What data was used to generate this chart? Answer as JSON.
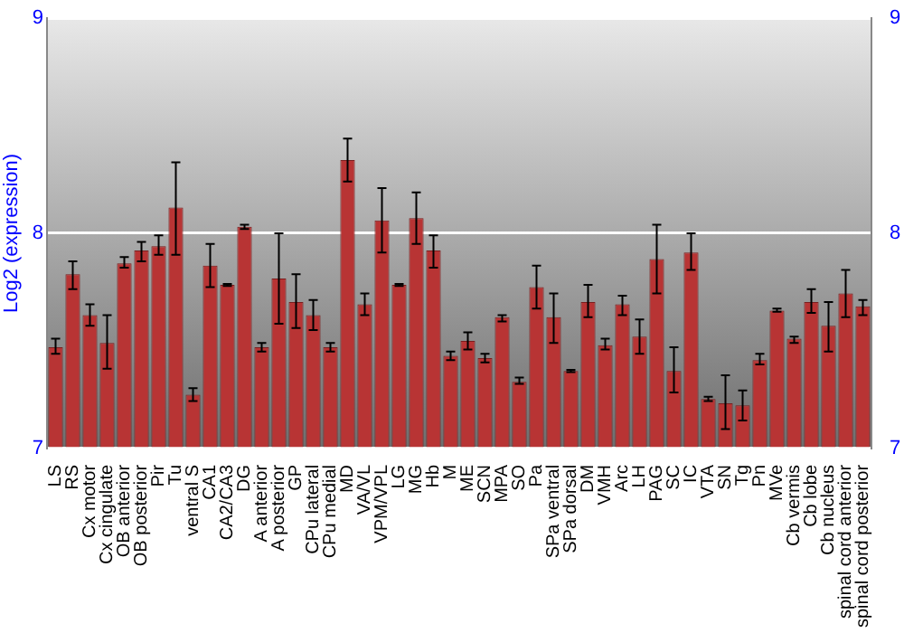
{
  "chart_data": {
    "type": "bar",
    "ylabel": "Log2 (expression)",
    "categories": [
      "LS",
      "RS",
      "Cx motor",
      "Cx cingulate",
      "OB anterior",
      "OB posterior",
      "Pir",
      "Tu",
      "ventral S",
      "CA1",
      "CA2/CA3",
      "DG",
      "A anterior",
      "A posterior",
      "GP",
      "CPu lateral",
      "CPu medial",
      "MD",
      "VA/VL",
      "VPM/VPL",
      "LG",
      "MG",
      "Hb",
      "M",
      "ME",
      "SCN",
      "MPA",
      "SO",
      "Pa",
      "SPa ventral",
      "SPa dorsal",
      "DM",
      "VMH",
      "Arc",
      "LH",
      "PAG",
      "SC",
      "IC",
      "VTA",
      "SN",
      "Tg",
      "Pn",
      "MVe",
      "Cb vermis",
      "Cb lobe",
      "Cb nucleus",
      "spinal cord anterior",
      "spinal cord posterior"
    ],
    "values": [
      7.47,
      7.81,
      7.62,
      7.49,
      7.86,
      7.92,
      7.94,
      8.12,
      7.25,
      7.85,
      7.76,
      8.03,
      7.47,
      7.79,
      7.68,
      7.62,
      7.47,
      8.34,
      7.67,
      8.06,
      7.76,
      8.07,
      7.92,
      7.43,
      7.5,
      7.42,
      7.61,
      7.31,
      7.75,
      7.61,
      7.36,
      7.68,
      7.48,
      7.67,
      7.52,
      7.88,
      7.36,
      7.91,
      7.23,
      7.21,
      7.2,
      7.41,
      7.64,
      7.51,
      7.68,
      7.57,
      7.72,
      7.66
    ],
    "errors": [
      [
        7.44,
        7.51
      ],
      [
        7.74,
        7.87
      ],
      [
        7.57,
        7.67
      ],
      [
        7.37,
        7.62
      ],
      [
        7.84,
        7.89
      ],
      [
        7.87,
        7.96
      ],
      [
        7.9,
        7.99
      ],
      [
        7.9,
        8.33
      ],
      [
        7.22,
        7.28
      ],
      [
        7.75,
        7.95
      ],
      [
        7.755,
        7.765
      ],
      [
        8.02,
        8.04
      ],
      [
        7.45,
        7.49
      ],
      [
        7.58,
        8.0
      ],
      [
        7.56,
        7.81
      ],
      [
        7.55,
        7.69
      ],
      [
        7.45,
        7.49
      ],
      [
        8.24,
        8.44
      ],
      [
        7.62,
        7.72
      ],
      [
        7.91,
        8.21
      ],
      [
        7.755,
        7.765
      ],
      [
        7.95,
        8.19
      ],
      [
        7.84,
        7.99
      ],
      [
        7.41,
        7.45
      ],
      [
        7.46,
        7.54
      ],
      [
        7.4,
        7.44
      ],
      [
        7.59,
        7.62
      ],
      [
        7.3,
        7.33
      ],
      [
        7.65,
        7.85
      ],
      [
        7.49,
        7.72
      ],
      [
        7.355,
        7.365
      ],
      [
        7.61,
        7.76
      ],
      [
        7.46,
        7.51
      ],
      [
        7.62,
        7.71
      ],
      [
        7.44,
        7.6
      ],
      [
        7.72,
        8.04
      ],
      [
        7.26,
        7.47
      ],
      [
        7.83,
        8.0
      ],
      [
        7.22,
        7.24
      ],
      [
        7.09,
        7.34
      ],
      [
        7.13,
        7.27
      ],
      [
        7.39,
        7.44
      ],
      [
        7.635,
        7.65
      ],
      [
        7.49,
        7.52
      ],
      [
        7.63,
        7.74
      ],
      [
        7.45,
        7.68
      ],
      [
        7.61,
        7.83
      ],
      [
        7.62,
        7.69
      ]
    ],
    "color": "#b83434",
    "ylim": [
      7,
      9
    ],
    "yticks": [
      7,
      8,
      9
    ],
    "y2lim": [
      7,
      9
    ],
    "y2ticks": [
      7,
      8,
      9
    ],
    "grid": "y",
    "legend": false
  }
}
